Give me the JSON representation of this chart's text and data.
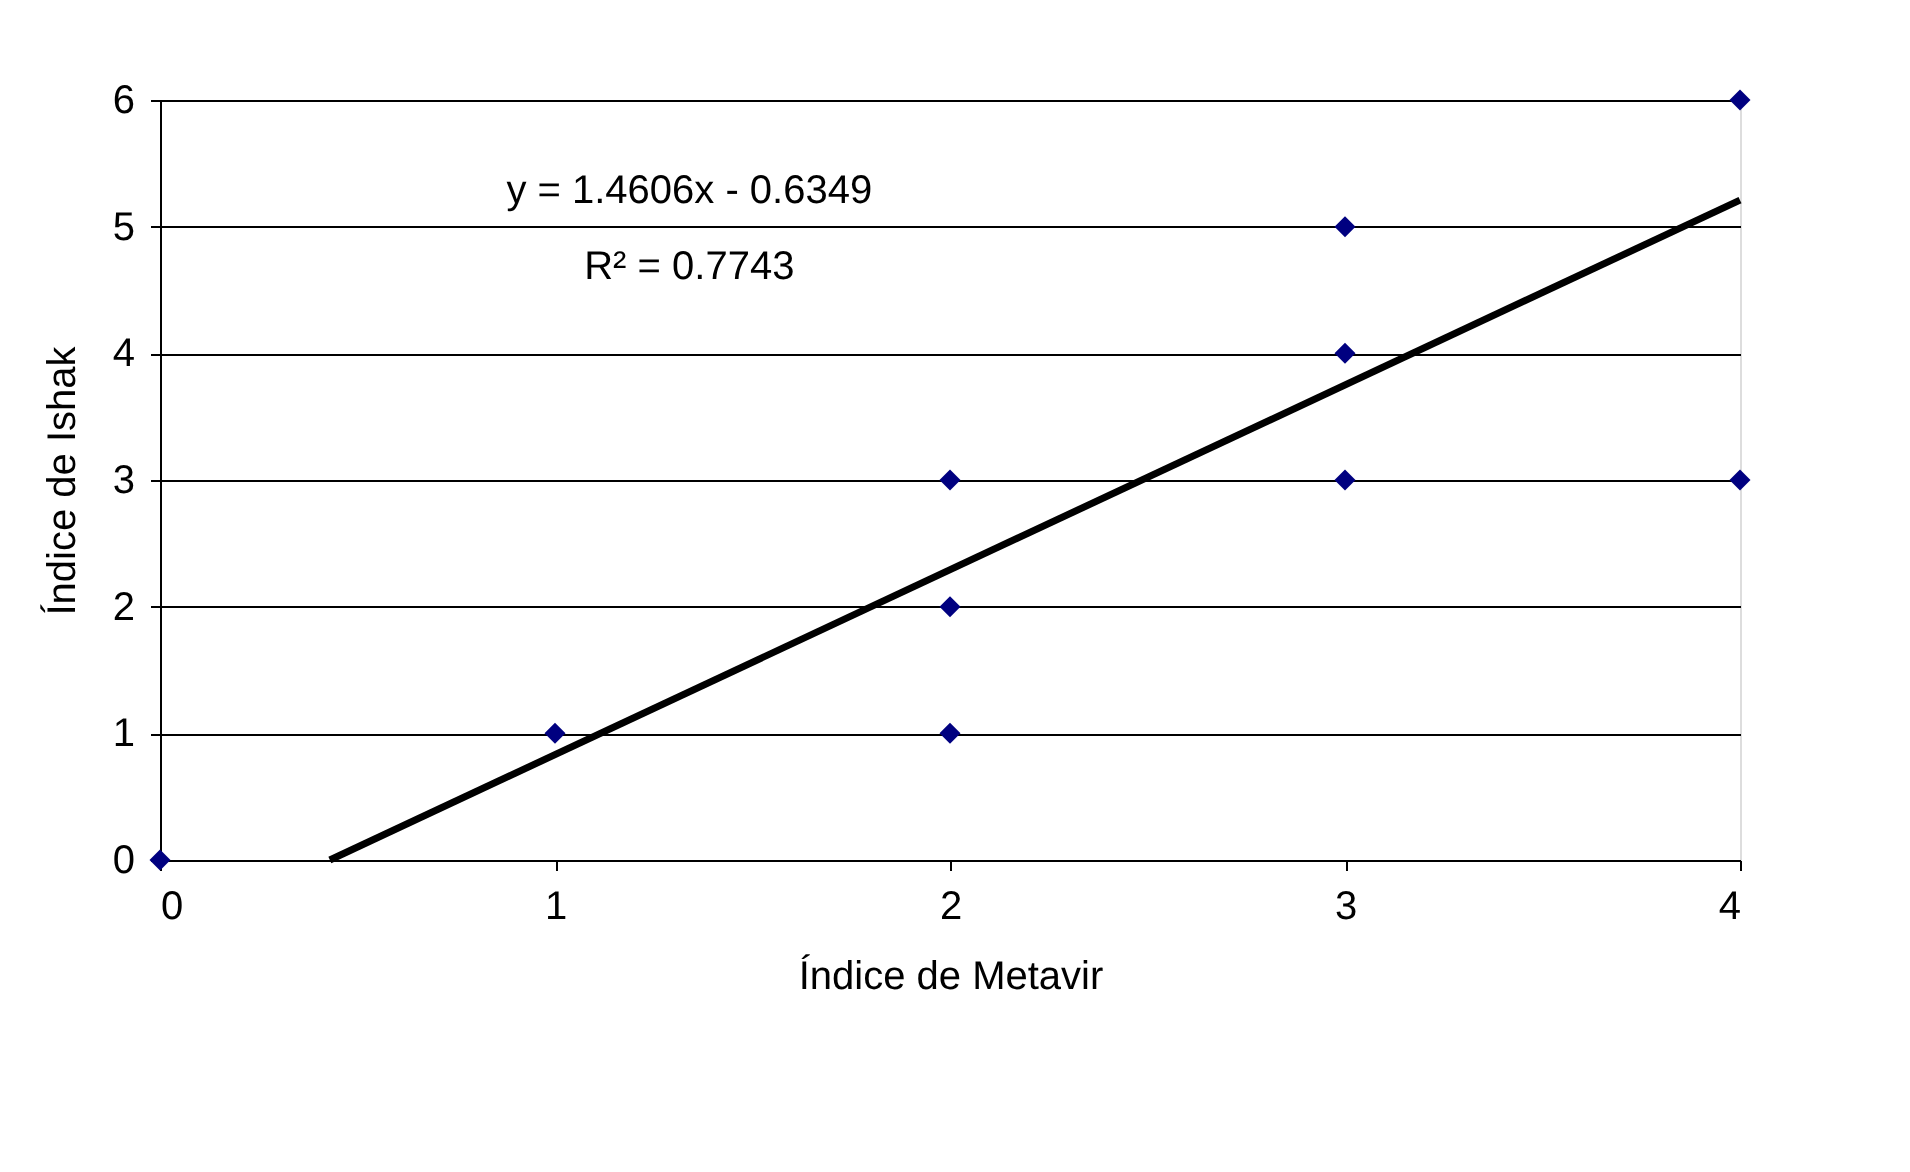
{
  "chart_data": {
    "type": "scatter",
    "xlabel": "Índice de Metavir",
    "ylabel": "Índice de Ishak",
    "x": [
      0,
      1,
      2,
      2,
      2,
      3,
      3,
      3,
      4,
      4
    ],
    "series": [
      {
        "type": "scatter",
        "color": "#000080",
        "marker": "diamond",
        "values": [
          0,
          1,
          1,
          2,
          3,
          3,
          4,
          5,
          3,
          6
        ]
      },
      {
        "type": "line",
        "color": "#000000",
        "marker": "none",
        "line_style": "solid",
        "x": [
          0.43,
          4
        ],
        "values": [
          0,
          5.21
        ]
      }
    ],
    "annotations": [
      "y = 1.4606x - 0.6349",
      "R² = 0.7743"
    ],
    "xlim": [
      0,
      4
    ],
    "xticks": [
      0,
      1,
      2,
      3,
      4
    ],
    "ylim": [
      0,
      6
    ],
    "yticks": [
      0,
      1,
      2,
      3,
      4,
      5,
      6
    ],
    "grid": "y"
  }
}
